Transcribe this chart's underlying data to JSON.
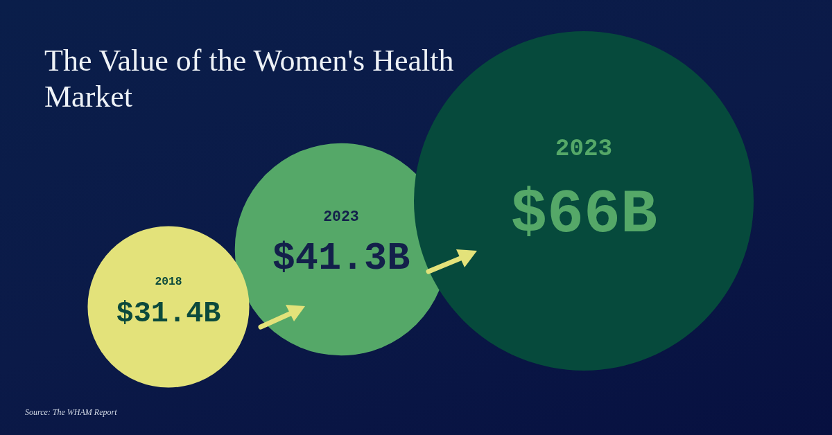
{
  "chart_data": {
    "type": "other",
    "title": "The Value of the Women's Health Market",
    "categories": [
      "2018",
      "2023",
      "2023"
    ],
    "values": [
      31.4,
      41.3,
      66
    ],
    "value_labels": [
      "$31.4B",
      "$41.3B",
      "$66B"
    ],
    "colors": [
      "#e3e27a",
      "#55a868",
      "#064a3c"
    ],
    "annotations": [
      "Source: The WHAM Report"
    ]
  }
}
